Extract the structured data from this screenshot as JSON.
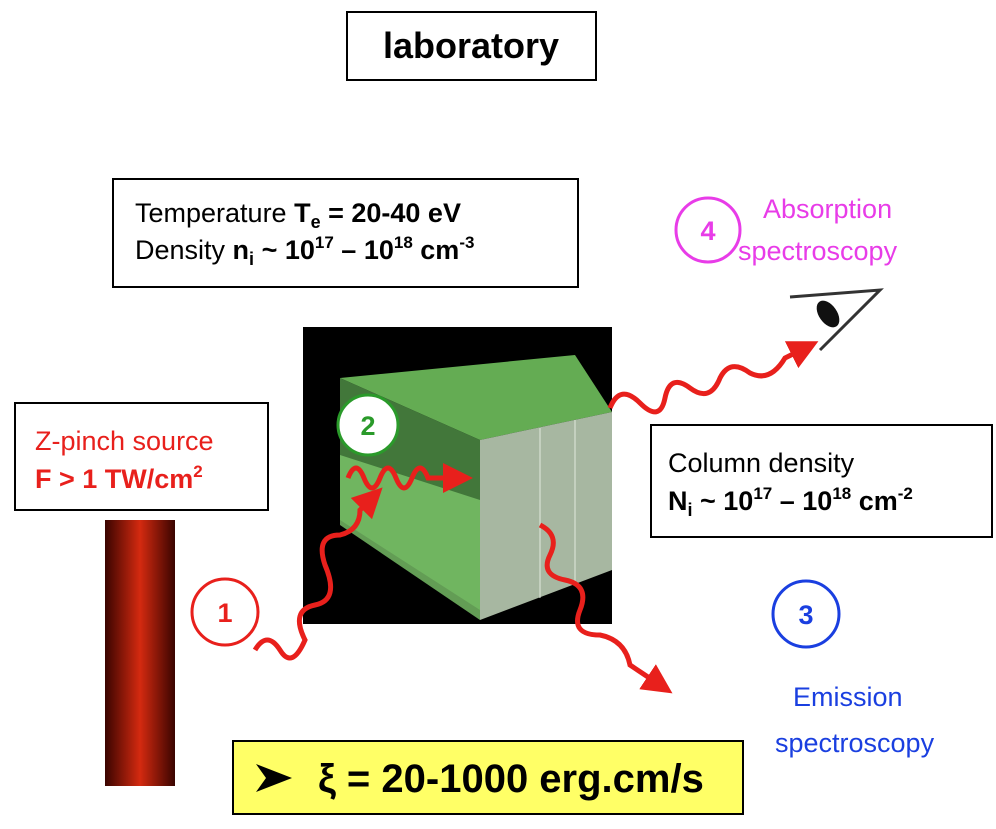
{
  "title": "laboratory",
  "conditions": {
    "temperature": {
      "label": "Temperature",
      "symbol": "T",
      "subscript": "e",
      "value": " = 20-40 eV"
    },
    "density": {
      "label": "Density",
      "symbol": "n",
      "subscript": "i",
      "approx": " ~ 10",
      "exp1": "17",
      "dash": " – 10",
      "exp2": "18",
      "unit": " cm",
      "unit_exp": "-3"
    }
  },
  "source": {
    "name": "Z-pinch source",
    "flux": "F > 1 TW/cm",
    "flux_exp": "2"
  },
  "column_density": {
    "label": "Column density",
    "symbol": "N",
    "subscript": "i",
    "approx": " ~ 10",
    "exp1": "17",
    "dash": " – 10",
    "exp2": "18",
    "unit": " cm",
    "unit_exp": "-2"
  },
  "nodes": [
    {
      "number": "1"
    },
    {
      "number": "2"
    },
    {
      "number": "3",
      "label": [
        "Emission",
        "spectroscopy"
      ]
    },
    {
      "number": "4",
      "label": [
        "Absorption",
        "spectroscopy"
      ]
    }
  ],
  "result": "ξ = 20-1000 erg.cm/s"
}
